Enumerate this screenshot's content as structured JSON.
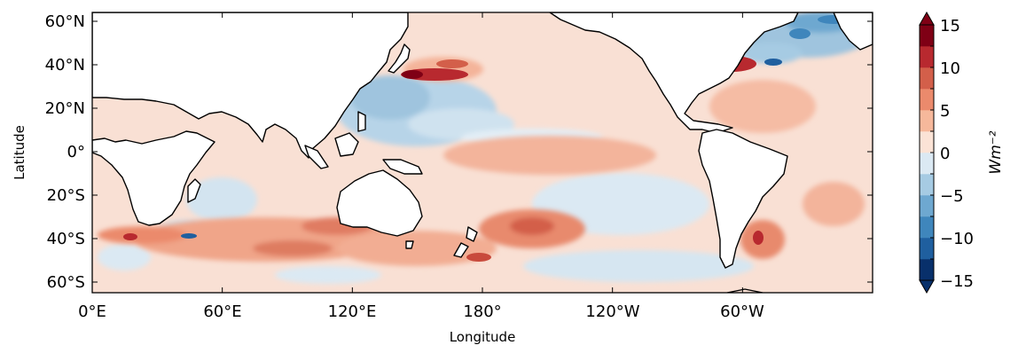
{
  "map": {
    "xlabel": "Longitude",
    "ylabel": "Latitude",
    "x_ticks": [
      "0°E",
      "60°E",
      "120°E",
      "180°",
      "120°W",
      "60°W"
    ],
    "y_ticks": [
      "60°N",
      "40°N",
      "20°N",
      "0°",
      "20°S",
      "40°S",
      "60°S"
    ],
    "colorbar": {
      "label": "Wm⁻²",
      "ticks": [
        "15",
        "10",
        "5",
        "0",
        "−5",
        "−10",
        "−15"
      ],
      "levels": [
        -15,
        -12.5,
        -10,
        -7.5,
        -5,
        -2.5,
        0,
        2.5,
        5,
        7.5,
        10,
        12.5,
        15
      ],
      "colors": [
        "#08306b",
        "#1f5f9f",
        "#3f86bc",
        "#6ea8d0",
        "#a6cbe3",
        "#dbe9f3",
        "#fbe3d6",
        "#f6b89b",
        "#eb8a6c",
        "#d35f4a",
        "#b8292f",
        "#7f0015"
      ],
      "extend": "both"
    },
    "colors": {
      "ocean_background": "#f9e0d4",
      "land": "#ffffff",
      "coastline": "#000000"
    }
  }
}
